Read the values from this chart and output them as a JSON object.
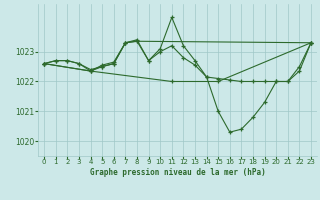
{
  "title": "Graphe pression niveau de la mer (hPa)",
  "bg_color": "#cce8e8",
  "grid_color": "#a0c8c8",
  "line_color": "#2d6a2d",
  "marker_color": "#2d6a2d",
  "xlim": [
    -0.5,
    23.5
  ],
  "ylim": [
    1019.5,
    1024.6
  ],
  "yticks": [
    1020,
    1021,
    1022,
    1023
  ],
  "xticks": [
    0,
    1,
    2,
    3,
    4,
    5,
    6,
    7,
    8,
    9,
    10,
    11,
    12,
    13,
    14,
    15,
    16,
    17,
    18,
    19,
    20,
    21,
    22,
    23
  ],
  "series": [
    [
      [
        0,
        1022.6
      ],
      [
        1,
        1022.7
      ],
      [
        2,
        1022.7
      ],
      [
        3,
        1022.6
      ],
      [
        4,
        1022.4
      ],
      [
        5,
        1022.5
      ],
      [
        6,
        1022.6
      ],
      [
        7,
        1023.3
      ],
      [
        8,
        1023.4
      ],
      [
        9,
        1022.7
      ],
      [
        10,
        1023.1
      ],
      [
        11,
        1024.15
      ],
      [
        12,
        1023.2
      ],
      [
        13,
        1022.7
      ],
      [
        14,
        1022.15
      ],
      [
        15,
        1021.0
      ],
      [
        16,
        1020.3
      ],
      [
        17,
        1020.4
      ],
      [
        18,
        1020.8
      ],
      [
        19,
        1021.3
      ],
      [
        20,
        1022.0
      ],
      [
        21,
        1022.0
      ],
      [
        22,
        1022.5
      ],
      [
        23,
        1023.3
      ]
    ],
    [
      [
        0,
        1022.6
      ],
      [
        1,
        1022.7
      ],
      [
        2,
        1022.7
      ],
      [
        3,
        1022.6
      ],
      [
        4,
        1022.35
      ],
      [
        5,
        1022.55
      ],
      [
        6,
        1022.65
      ],
      [
        7,
        1023.3
      ],
      [
        8,
        1023.35
      ],
      [
        23,
        1023.3
      ]
    ],
    [
      [
        0,
        1022.6
      ],
      [
        4,
        1022.35
      ],
      [
        5,
        1022.5
      ],
      [
        6,
        1022.6
      ],
      [
        7,
        1023.3
      ],
      [
        8,
        1023.35
      ],
      [
        9,
        1022.7
      ],
      [
        10,
        1023.0
      ],
      [
        11,
        1023.2
      ],
      [
        12,
        1022.8
      ],
      [
        13,
        1022.55
      ],
      [
        14,
        1022.15
      ],
      [
        15,
        1022.1
      ],
      [
        16,
        1022.05
      ],
      [
        17,
        1022.0
      ],
      [
        18,
        1022.0
      ],
      [
        19,
        1022.0
      ],
      [
        20,
        1022.0
      ],
      [
        21,
        1022.0
      ],
      [
        22,
        1022.35
      ],
      [
        23,
        1023.3
      ]
    ],
    [
      [
        0,
        1022.6
      ],
      [
        4,
        1022.35
      ],
      [
        11,
        1022.0
      ],
      [
        15,
        1022.0
      ],
      [
        23,
        1023.3
      ]
    ]
  ],
  "figsize": [
    3.2,
    2.0
  ],
  "dpi": 100
}
